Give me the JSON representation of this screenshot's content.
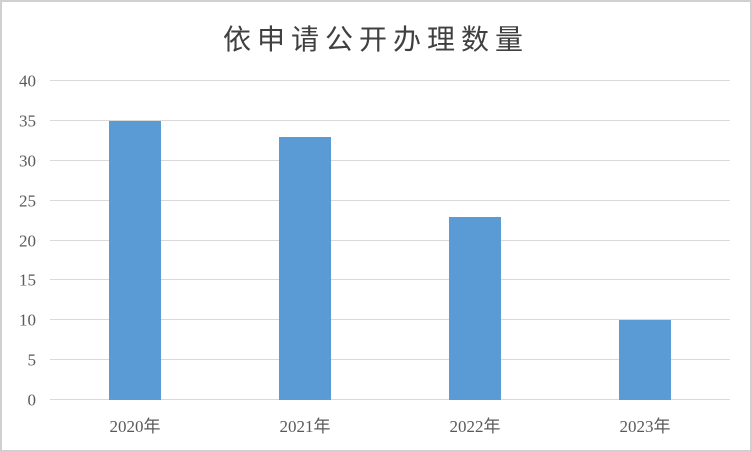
{
  "chart_data": {
    "type": "bar",
    "title": "依申请公开办理数量",
    "categories": [
      "2020年",
      "2021年",
      "2022年",
      "2023年"
    ],
    "values": [
      35,
      33,
      23,
      10
    ],
    "xlabel": "",
    "ylabel": "",
    "ylim": [
      0,
      40
    ],
    "yticks": [
      0,
      5,
      10,
      15,
      20,
      25,
      30,
      35,
      40
    ],
    "grid": "horizontal",
    "legend_position": "none",
    "bar_color": "#5B9BD5",
    "gridline_color": "#D9D9D9",
    "axis_label_color": "#595959",
    "title_color": "#404040"
  }
}
